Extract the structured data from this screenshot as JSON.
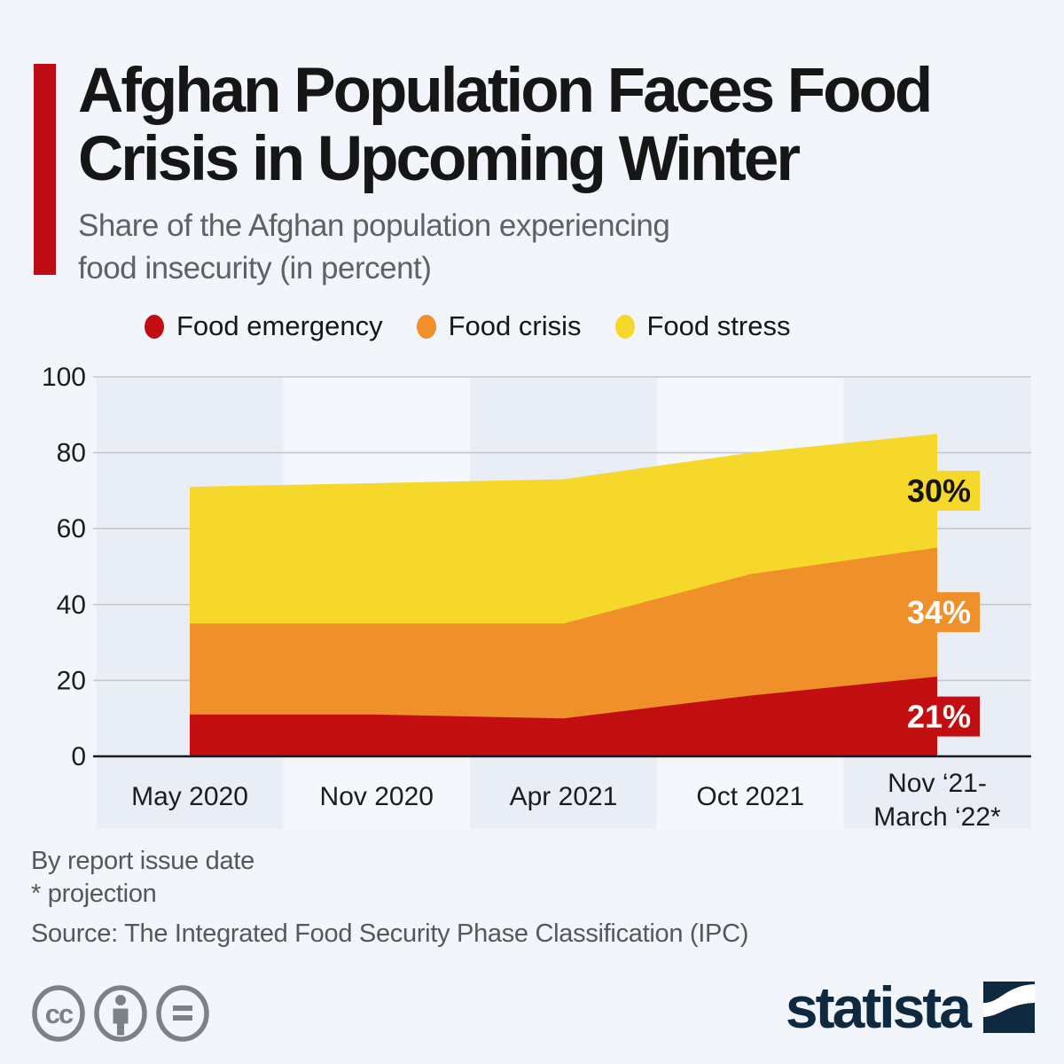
{
  "header": {
    "title_lines": [
      "Afghan Population Faces Food",
      "Crisis in Upcoming Winter"
    ],
    "subtitle_lines": [
      "Share of the Afghan population experiencing",
      "food insecurity (in percent)"
    ],
    "accent_color": "#bf0d17"
  },
  "legend": {
    "items": [
      {
        "label": "Food emergency",
        "color": "#c20e11"
      },
      {
        "label": "Food crisis",
        "color": "#f0902a"
      },
      {
        "label": "Food stress",
        "color": "#f6d82a"
      }
    ]
  },
  "chart_data": {
    "type": "area",
    "stacked": true,
    "title": "Share of the Afghan population experiencing food insecurity (in percent)",
    "categories": [
      "May 2020",
      "Nov 2020",
      "Apr 2021",
      "Oct 2021",
      "Nov ‘21-March ‘22*"
    ],
    "x_label_lines": [
      [
        "May 2020"
      ],
      [
        "Nov 2020"
      ],
      [
        "Apr 2021"
      ],
      [
        "Oct 2021"
      ],
      [
        "Nov ‘21-",
        "March ‘22*"
      ]
    ],
    "series": [
      {
        "name": "Food emergency",
        "color": "#c20e11",
        "values": [
          11,
          11,
          10,
          16,
          21
        ],
        "end_label": "21%",
        "end_label_text_color": "#ffffff"
      },
      {
        "name": "Food crisis",
        "color": "#f0902a",
        "values": [
          24,
          24,
          25,
          32,
          34
        ],
        "end_label": "34%",
        "end_label_text_color": "#ffffff"
      },
      {
        "name": "Food stress",
        "color": "#f6d82a",
        "values": [
          36,
          37,
          38,
          32,
          30
        ],
        "end_label": "30%",
        "end_label_text_color": "#161616"
      }
    ],
    "stacked_totals": [
      71,
      72,
      73,
      80,
      85
    ],
    "xlabel": "",
    "ylabel": "",
    "ylim": [
      0,
      100
    ],
    "yticks": [
      0,
      20,
      40,
      60,
      80,
      100
    ],
    "grid": "horizontal",
    "legend_position": "top",
    "band_colors": {
      "dark": "#e9edf5",
      "light": "#f4f7fc"
    },
    "gridline_color": "#c4c8ce",
    "axis_line_color": "#1a1a1a",
    "tick_text_color": "#1c1c1c"
  },
  "footer": {
    "note1": "By report issue date",
    "note2": "* projection",
    "source": "Source: The Integrated Food Security Phase Classification (IPC)"
  },
  "branding": {
    "logo_text": "statista",
    "logo_color": "#0e2940",
    "cc_icon_color": "#7b8287"
  }
}
